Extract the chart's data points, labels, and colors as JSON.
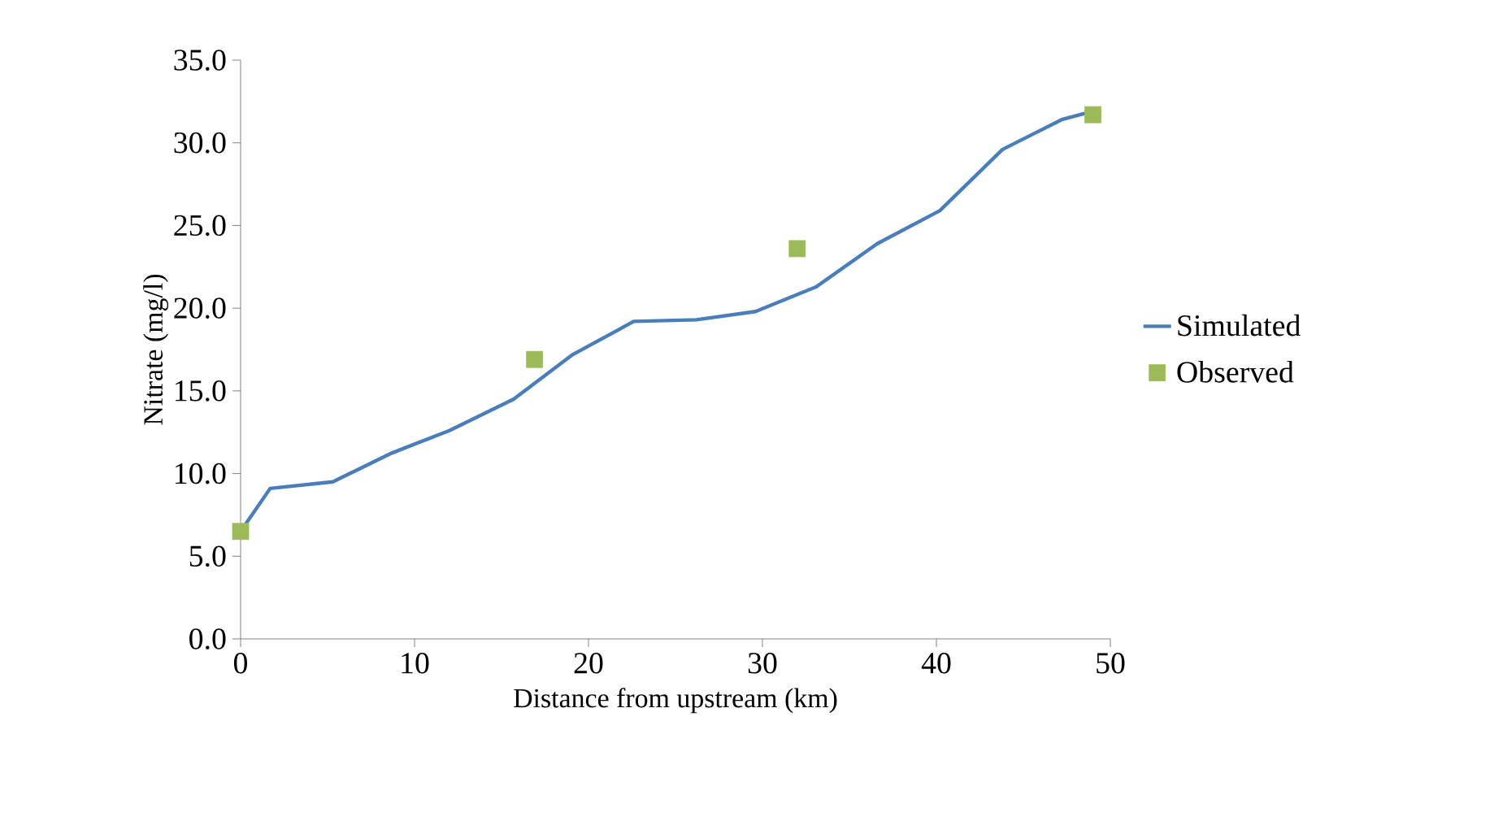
{
  "chart_data": {
    "type": "line",
    "xlabel": "Distance from upstream (km)",
    "ylabel": "Nitrate (mg/l)",
    "xlim": [
      0,
      50
    ],
    "xticks": [
      0,
      10,
      20,
      30,
      40,
      50
    ],
    "ylim": [
      0,
      35
    ],
    "yticks": [
      {
        "value": 0,
        "label": "0.0"
      },
      {
        "value": 5,
        "label": "5.0"
      },
      {
        "value": 10,
        "label": "10.0"
      },
      {
        "value": 15,
        "label": "15.0"
      },
      {
        "value": 20,
        "label": "20.0"
      },
      {
        "value": 25,
        "label": "25.0"
      },
      {
        "value": 30,
        "label": "30.0"
      },
      {
        "value": 35,
        "label": "35.0"
      }
    ],
    "legend": "right",
    "grid": false,
    "series": [
      {
        "name": "Simulated",
        "color": "#4a7ebb",
        "marker": "none",
        "x": [
          0,
          1.7,
          5.3,
          8.6,
          12,
          15.7,
          19.1,
          22.6,
          26.2,
          29.6,
          33.1,
          36.6,
          40.2,
          43.8,
          47.2,
          48.6
        ],
        "values": [
          6.5,
          9.1,
          9.5,
          11.2,
          12.6,
          14.5,
          17.2,
          19.2,
          19.3,
          19.8,
          21.3,
          23.9,
          25.9,
          29.6,
          31.4,
          31.8
        ]
      },
      {
        "name": "Observed",
        "type": "scatter",
        "color": "#9bbb59",
        "marker": "square",
        "x": [
          0,
          16.9,
          32,
          49
        ],
        "values": [
          6.5,
          16.9,
          23.6,
          31.7
        ]
      }
    ]
  }
}
